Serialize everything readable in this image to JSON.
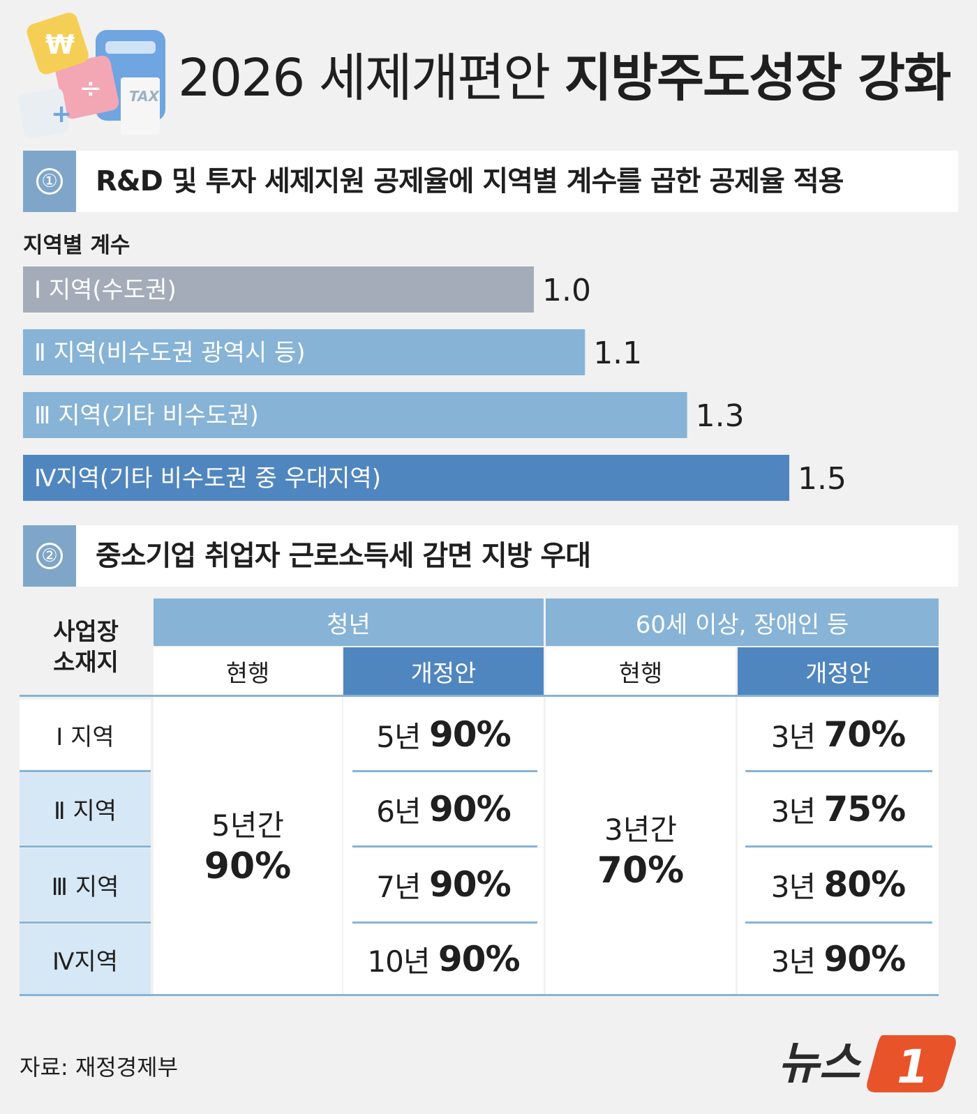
{
  "header": {
    "title_light": "2026 세제개편안",
    "title_bold": "지방주도성장 강화",
    "illustration_icon": "tax-calculator-icon",
    "illustration_tax_label": "TAX"
  },
  "section1": {
    "number": "①",
    "title": "R&D 및 투자 세제지원 공제율에 지역별 계수를 곱한 공제율 적용",
    "chart_label": "지역별 계수"
  },
  "chart_data": {
    "type": "bar",
    "orientation": "horizontal",
    "categories": [
      "Ⅰ 지역(수도권)",
      "Ⅱ 지역(비수도권 광역시 등)",
      "Ⅲ 지역(기타 비수도권)",
      "Ⅳ지역(기타 비수도권 중 우대지역)"
    ],
    "values": [
      1.0,
      1.1,
      1.3,
      1.5
    ],
    "value_labels": [
      "1.0",
      "1.1",
      "1.3",
      "1.5"
    ],
    "colors": [
      "#a3acb8",
      "#86b3d6",
      "#86b3d6",
      "#5086bf"
    ]
  },
  "section2": {
    "number": "②",
    "title": "중소기업 취업자 근로소득세 감면 지방 우대"
  },
  "table": {
    "corner_label_1": "사업장",
    "corner_label_2": "소재지",
    "group1": "청년",
    "group2": "60세 이상, 장애인 등",
    "sub_current": "현행",
    "sub_revised": "개정안",
    "rows": [
      {
        "region": "Ⅰ 지역",
        "youth_revised_years": "5년",
        "youth_revised_rate": "90%",
        "senior_revised_years": "3년",
        "senior_revised_rate": "70%"
      },
      {
        "region": "Ⅱ 지역",
        "youth_revised_years": "6년",
        "youth_revised_rate": "90%",
        "senior_revised_years": "3년",
        "senior_revised_rate": "75%"
      },
      {
        "region": "Ⅲ 지역",
        "youth_revised_years": "7년",
        "youth_revised_rate": "90%",
        "senior_revised_years": "3년",
        "senior_revised_rate": "80%"
      },
      {
        "region": "Ⅳ지역",
        "youth_revised_years": "10년",
        "youth_revised_rate": "90%",
        "senior_revised_years": "3년",
        "senior_revised_rate": "90%"
      }
    ],
    "youth_current_period": "5년간",
    "youth_current_rate": "90%",
    "senior_current_period": "3년간",
    "senior_current_rate": "70%"
  },
  "footer": {
    "source": "자료: 재정경제부",
    "logo_text": "뉴스",
    "logo_mark": "1"
  }
}
